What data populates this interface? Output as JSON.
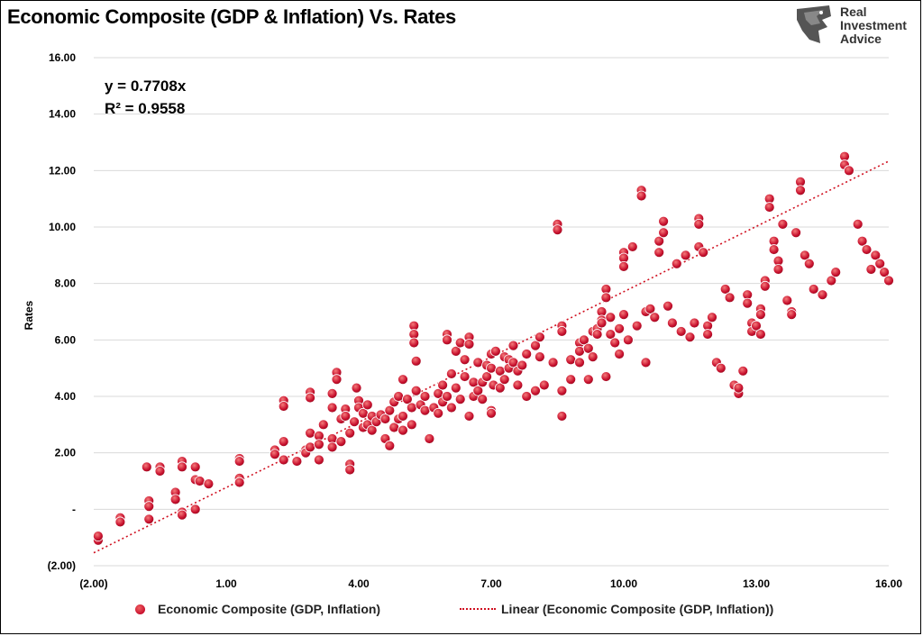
{
  "title": "Economic Composite (GDP & Inflation) Vs. Rates",
  "logo": {
    "icon": "eagle-head-icon",
    "line1": "Real",
    "line2": "Investment",
    "line3": "Advice"
  },
  "colors": {
    "point": "#c8102e",
    "trend": "#d01020",
    "grid": "#d9d9d9"
  },
  "chart_data": {
    "type": "scatter",
    "title": "Economic Composite (GDP & Inflation) Vs. Rates",
    "xlabel": "",
    "ylabel": "Rates",
    "xlim": [
      -2,
      16
    ],
    "ylim": [
      -2,
      16
    ],
    "x_tick_labels": [
      "(2.00)",
      "1.00",
      "4.00",
      "7.00",
      "10.00",
      "13.00",
      "16.00"
    ],
    "x_ticks": [
      -2,
      1,
      4,
      7,
      10,
      13,
      16
    ],
    "y_tick_labels": [
      "(2.00)",
      "-",
      "2.00",
      "4.00",
      "6.00",
      "8.00",
      "10.00",
      "12.00",
      "14.00",
      "16.00"
    ],
    "y_ticks": [
      -2,
      0,
      2,
      4,
      6,
      8,
      10,
      12,
      14,
      16
    ],
    "grid": "horizontal",
    "equation": "y = 0.7708x",
    "r_squared": "R² = 0.9558",
    "trendline": {
      "slope": 0.7708,
      "intercept": 0,
      "x_range": [
        -2,
        16
      ]
    },
    "series": [
      {
        "name": "Economic Composite (GDP, Inflation)",
        "points": [
          [
            -1.9,
            -1.1
          ],
          [
            -1.9,
            -0.95
          ],
          [
            -1.4,
            -0.3
          ],
          [
            -1.4,
            -0.45
          ],
          [
            -0.8,
            1.5
          ],
          [
            -0.5,
            1.5
          ],
          [
            -0.5,
            1.35
          ],
          [
            -0.75,
            0.3
          ],
          [
            -0.75,
            -0.35
          ],
          [
            -0.75,
            0.1
          ],
          [
            -0.15,
            0.6
          ],
          [
            -0.15,
            0.35
          ],
          [
            0,
            -0.1
          ],
          [
            0,
            -0.2
          ],
          [
            0,
            1.7
          ],
          [
            0,
            1.5
          ],
          [
            0.3,
            1.5
          ],
          [
            0.3,
            1.05
          ],
          [
            0.3,
            0
          ],
          [
            0.4,
            1
          ],
          [
            0.6,
            0.9
          ],
          [
            1.3,
            1.8
          ],
          [
            1.3,
            1.7
          ],
          [
            1.3,
            1.1
          ],
          [
            1.3,
            0.95
          ],
          [
            2.1,
            2.1
          ],
          [
            2.1,
            1.95
          ],
          [
            2.3,
            3.85
          ],
          [
            2.3,
            3.65
          ],
          [
            2.3,
            2.4
          ],
          [
            2.3,
            1.75
          ],
          [
            2.6,
            1.7
          ],
          [
            2.8,
            2.1
          ],
          [
            2.8,
            2.0
          ],
          [
            2.9,
            4.15
          ],
          [
            2.9,
            3.95
          ],
          [
            2.9,
            2.7
          ],
          [
            2.9,
            2.2
          ],
          [
            3.1,
            2.6
          ],
          [
            3.1,
            2.3
          ],
          [
            3.1,
            1.75
          ],
          [
            3.2,
            3.0
          ],
          [
            3.4,
            4.1
          ],
          [
            3.4,
            3.6
          ],
          [
            3.4,
            2.5
          ],
          [
            3.4,
            2.2
          ],
          [
            3.5,
            4.85
          ],
          [
            3.5,
            4.6
          ],
          [
            3.6,
            3.2
          ],
          [
            3.6,
            2.4
          ],
          [
            3.7,
            3.55
          ],
          [
            3.7,
            3.3
          ],
          [
            3.8,
            2.7
          ],
          [
            3.8,
            1.6
          ],
          [
            3.8,
            1.4
          ],
          [
            3.9,
            3.1
          ],
          [
            3.95,
            4.3
          ],
          [
            4.0,
            3.85
          ],
          [
            4.0,
            3.6
          ],
          [
            4.1,
            3.4
          ],
          [
            4.1,
            2.9
          ],
          [
            4.2,
            3.7
          ],
          [
            4.2,
            3.0
          ],
          [
            4.3,
            3.3
          ],
          [
            4.3,
            2.8
          ],
          [
            4.4,
            3.1
          ],
          [
            4.5,
            3.35
          ],
          [
            4.6,
            2.5
          ],
          [
            4.6,
            3.2
          ],
          [
            4.7,
            3.5
          ],
          [
            4.7,
            2.25
          ],
          [
            4.8,
            3.8
          ],
          [
            4.8,
            2.9
          ],
          [
            4.9,
            3.2
          ],
          [
            4.9,
            4.0
          ],
          [
            5.0,
            4.6
          ],
          [
            5.0,
            3.3
          ],
          [
            5.0,
            2.8
          ],
          [
            5.1,
            3.9
          ],
          [
            5.2,
            3.6
          ],
          [
            5.2,
            3.0
          ],
          [
            5.25,
            6.5
          ],
          [
            5.25,
            6.2
          ],
          [
            5.25,
            5.9
          ],
          [
            5.3,
            4.2
          ],
          [
            5.3,
            5.25
          ],
          [
            5.4,
            3.7
          ],
          [
            5.5,
            3.5
          ],
          [
            5.5,
            4.0
          ],
          [
            5.6,
            2.5
          ],
          [
            5.7,
            3.6
          ],
          [
            5.8,
            4.1
          ],
          [
            5.8,
            3.4
          ],
          [
            5.9,
            4.4
          ],
          [
            5.9,
            3.8
          ],
          [
            6.0,
            6.2
          ],
          [
            6.0,
            6.0
          ],
          [
            6.0,
            4.0
          ],
          [
            6.1,
            4.8
          ],
          [
            6.1,
            3.6
          ],
          [
            6.2,
            5.6
          ],
          [
            6.2,
            4.3
          ],
          [
            6.3,
            5.9
          ],
          [
            6.3,
            3.9
          ],
          [
            6.4,
            5.3
          ],
          [
            6.4,
            4.7
          ],
          [
            6.5,
            6.1
          ],
          [
            6.5,
            5.85
          ],
          [
            6.5,
            3.3
          ],
          [
            6.6,
            4.5
          ],
          [
            6.6,
            4.0
          ],
          [
            6.7,
            5.2
          ],
          [
            6.7,
            4.2
          ],
          [
            6.8,
            4.5
          ],
          [
            6.8,
            3.9
          ],
          [
            6.9,
            5.1
          ],
          [
            6.9,
            4.7
          ],
          [
            7.0,
            5.5
          ],
          [
            7.0,
            5.0
          ],
          [
            7.0,
            3.5
          ],
          [
            7.0,
            3.4
          ],
          [
            7.05,
            4.4
          ],
          [
            7.1,
            5.6
          ],
          [
            7.2,
            4.9
          ],
          [
            7.2,
            4.3
          ],
          [
            7.3,
            5.4
          ],
          [
            7.3,
            4.6
          ],
          [
            7.4,
            5.3
          ],
          [
            7.4,
            5.0
          ],
          [
            7.5,
            5.8
          ],
          [
            7.5,
            5.2
          ],
          [
            7.6,
            4.9
          ],
          [
            7.6,
            4.4
          ],
          [
            7.7,
            5.1
          ],
          [
            7.8,
            5.5
          ],
          [
            7.8,
            4.0
          ],
          [
            8.0,
            5.8
          ],
          [
            8.0,
            4.2
          ],
          [
            8.1,
            6.1
          ],
          [
            8.1,
            5.4
          ],
          [
            8.2,
            4.4
          ],
          [
            8.4,
            5.2
          ],
          [
            8.5,
            10.1
          ],
          [
            8.5,
            9.9
          ],
          [
            8.6,
            6.5
          ],
          [
            8.6,
            6.3
          ],
          [
            8.6,
            4.2
          ],
          [
            8.6,
            3.3
          ],
          [
            8.8,
            5.3
          ],
          [
            8.8,
            4.6
          ],
          [
            9.0,
            5.9
          ],
          [
            9.0,
            5.6
          ],
          [
            9.0,
            5.2
          ],
          [
            9.1,
            6.0
          ],
          [
            9.2,
            5.7
          ],
          [
            9.2,
            4.6
          ],
          [
            9.3,
            6.3
          ],
          [
            9.3,
            5.4
          ],
          [
            9.4,
            6.4
          ],
          [
            9.4,
            6.2
          ],
          [
            9.5,
            7.0
          ],
          [
            9.5,
            6.7
          ],
          [
            9.5,
            6.6
          ],
          [
            9.6,
            7.8
          ],
          [
            9.6,
            7.5
          ],
          [
            9.6,
            4.7
          ],
          [
            9.7,
            6.8
          ],
          [
            9.7,
            6.2
          ],
          [
            9.8,
            5.9
          ],
          [
            9.9,
            5.5
          ],
          [
            9.9,
            6.4
          ],
          [
            10.0,
            9.1
          ],
          [
            10.0,
            8.9
          ],
          [
            10.0,
            8.6
          ],
          [
            10.0,
            6.9
          ],
          [
            10.1,
            6.0
          ],
          [
            10.2,
            9.3
          ],
          [
            10.3,
            6.5
          ],
          [
            10.4,
            11.3
          ],
          [
            10.4,
            11.1
          ],
          [
            10.5,
            7.0
          ],
          [
            10.5,
            5.2
          ],
          [
            10.6,
            7.1
          ],
          [
            10.7,
            6.8
          ],
          [
            10.8,
            9.5
          ],
          [
            10.8,
            9.1
          ],
          [
            10.9,
            9.8
          ],
          [
            10.9,
            10.2
          ],
          [
            11.0,
            7.2
          ],
          [
            11.1,
            6.6
          ],
          [
            11.2,
            8.7
          ],
          [
            11.3,
            6.3
          ],
          [
            11.4,
            9.0
          ],
          [
            11.5,
            6.1
          ],
          [
            11.6,
            6.6
          ],
          [
            11.7,
            9.3
          ],
          [
            11.7,
            10.3
          ],
          [
            11.7,
            10.1
          ],
          [
            11.8,
            9.1
          ],
          [
            11.9,
            6.5
          ],
          [
            11.9,
            6.2
          ],
          [
            12.0,
            6.8
          ],
          [
            12.1,
            5.2
          ],
          [
            12.2,
            5.0
          ],
          [
            12.3,
            7.8
          ],
          [
            12.4,
            7.5
          ],
          [
            12.5,
            4.4
          ],
          [
            12.6,
            4.1
          ],
          [
            12.6,
            4.3
          ],
          [
            12.7,
            4.9
          ],
          [
            12.8,
            7.6
          ],
          [
            12.8,
            7.3
          ],
          [
            12.9,
            6.6
          ],
          [
            12.9,
            6.3
          ],
          [
            13.0,
            6.5
          ],
          [
            13.1,
            7.1
          ],
          [
            13.1,
            6.9
          ],
          [
            13.1,
            6.2
          ],
          [
            13.2,
            8.1
          ],
          [
            13.2,
            7.9
          ],
          [
            13.3,
            11.0
          ],
          [
            13.3,
            10.7
          ],
          [
            13.4,
            9.5
          ],
          [
            13.4,
            9.2
          ],
          [
            13.5,
            8.8
          ],
          [
            13.5,
            8.5
          ],
          [
            13.6,
            10.1
          ],
          [
            13.7,
            7.4
          ],
          [
            13.8,
            7.0
          ],
          [
            13.8,
            6.9
          ],
          [
            13.9,
            9.8
          ],
          [
            14.0,
            11.6
          ],
          [
            14.0,
            11.3
          ],
          [
            14.1,
            9.0
          ],
          [
            14.2,
            8.7
          ],
          [
            14.3,
            7.8
          ],
          [
            14.5,
            7.6
          ],
          [
            14.7,
            8.1
          ],
          [
            14.8,
            8.4
          ],
          [
            15.0,
            12.5
          ],
          [
            15.0,
            12.2
          ],
          [
            15.1,
            12.0
          ],
          [
            15.3,
            10.1
          ],
          [
            15.4,
            9.5
          ],
          [
            15.5,
            9.2
          ],
          [
            15.6,
            8.5
          ],
          [
            15.7,
            9.0
          ],
          [
            15.8,
            8.7
          ],
          [
            15.9,
            8.4
          ],
          [
            16.0,
            8.1
          ]
        ]
      }
    ],
    "legend": {
      "position": "bottom",
      "scatter_label": "Economic Composite (GDP, Inflation)",
      "trend_label": "Linear (Economic Composite (GDP, Inflation))"
    }
  }
}
